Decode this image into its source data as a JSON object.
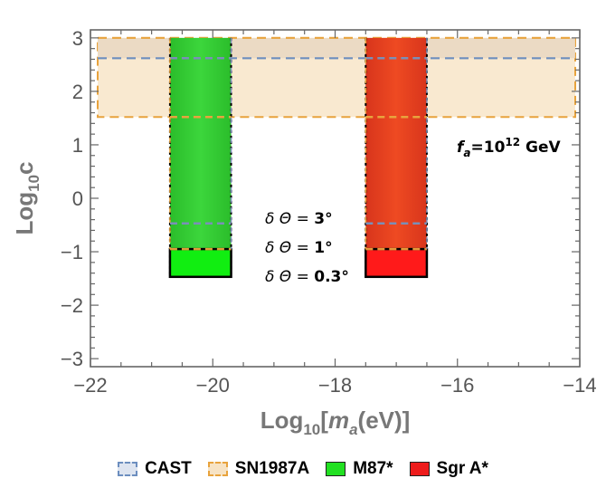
{
  "chart_data": {
    "type": "area",
    "title": "",
    "xlabel": "Log10[ma(eV)]",
    "ylabel": "Log10c",
    "xlim": [
      -22,
      -14
    ],
    "ylim": [
      -3.15,
      3.15
    ],
    "x_ticks": [
      -22,
      -20,
      -18,
      -16,
      -14
    ],
    "y_ticks": [
      3,
      2,
      1,
      0,
      -1,
      -2,
      -3
    ],
    "x_tick_labels": [
      "−22",
      "−20",
      "−18",
      "−16",
      "−14"
    ],
    "y_tick_labels": [
      "3",
      "2",
      "1",
      "0",
      "−1",
      "−2",
      "−3"
    ],
    "grid": false,
    "legend_position": "bottom",
    "series": [
      {
        "name": "CAST",
        "kind": "band",
        "x": [
          -22,
          -14
        ],
        "y_min": 2.62,
        "y_max": 3.0,
        "color": "#6c8ebf",
        "style": "dashed"
      },
      {
        "name": "SN1987A",
        "kind": "band",
        "x": [
          -22,
          -14
        ],
        "y_min": 1.52,
        "y_max": 3.0,
        "color": "#e8a33d",
        "fill": "#f7e3c4",
        "style": "dashed"
      },
      {
        "name": "M87*",
        "kind": "bar",
        "x_range": [
          -20.7,
          -19.7
        ],
        "y_bottom": -1.47,
        "y_top": 3.0,
        "color": "#2fcc2f",
        "levels": [
          {
            "label": "δΘ = 3°",
            "y": -0.47
          },
          {
            "label": "δΘ = 1°",
            "y": -0.95
          },
          {
            "label": "δΘ = 0.3°",
            "y": -1.47
          }
        ]
      },
      {
        "name": "Sgr A*",
        "kind": "bar",
        "x_range": [
          -17.5,
          -16.5
        ],
        "y_bottom": -1.47,
        "y_top": 3.0,
        "color": "#e83c1f",
        "levels": [
          {
            "label": "δΘ = 3°",
            "y": -0.47
          },
          {
            "label": "δΘ = 1°",
            "y": -0.95
          },
          {
            "label": "δΘ = 0.3°",
            "y": -1.47
          }
        ]
      }
    ],
    "annotations": {
      "fa": {
        "prefix": "f",
        "sub": "a",
        "mid": "=10",
        "sup": "12",
        "suffix": " GeV"
      },
      "delta_labels": [
        {
          "text": "δ Θ = ",
          "value": "3°"
        },
        {
          "text": "δ Θ = ",
          "value": "1°"
        },
        {
          "text": "δ Θ = ",
          "value": "0.3°"
        }
      ]
    },
    "legend": [
      {
        "label": "CAST",
        "color": "#6c8ebf"
      },
      {
        "label": "SN1987A",
        "color": "#e8a33d"
      },
      {
        "label": "M87*",
        "color": "#22e022"
      },
      {
        "label": "Sgr A*",
        "color": "#ee1c1c"
      }
    ]
  }
}
